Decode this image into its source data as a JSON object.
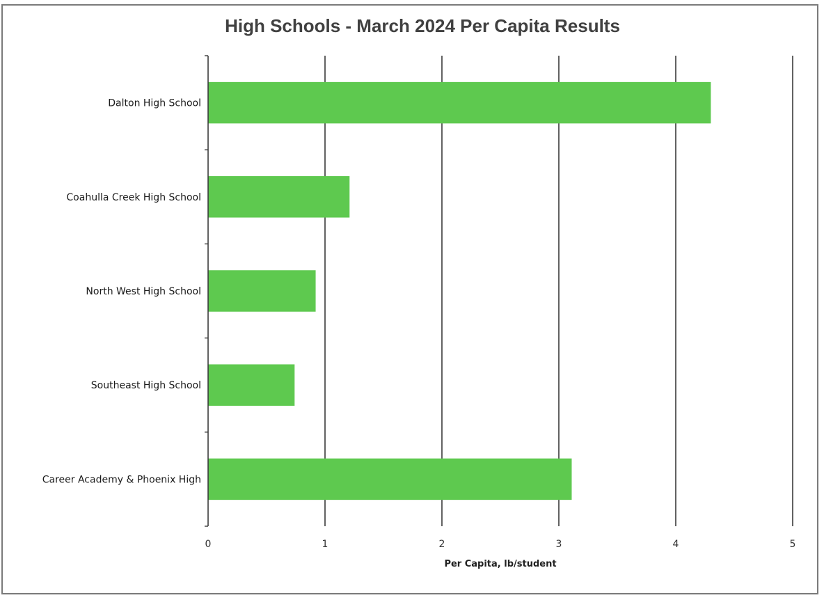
{
  "chart_data": {
    "type": "bar",
    "orientation": "horizontal",
    "title": "High Schools - March 2024 Per Capita Results",
    "xlabel": "Per Capita, lb/student",
    "ylabel": "",
    "categories": [
      "Dalton High School",
      "Coahulla Creek High School",
      "North West High School",
      "Southeast High School",
      "Career Academy & Phoenix High"
    ],
    "values": [
      4.3,
      1.21,
      0.92,
      0.74,
      3.11
    ],
    "xlim": [
      0,
      5
    ],
    "xticks": [
      "0",
      "1",
      "2",
      "3",
      "4",
      "5"
    ],
    "grid": "vertical",
    "legend": "none",
    "bar_color": "#5ec94f"
  }
}
